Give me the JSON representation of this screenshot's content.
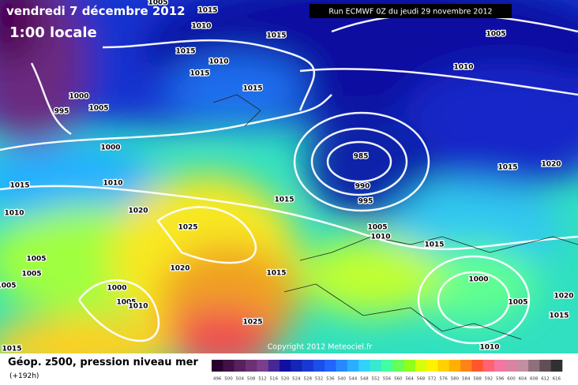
{
  "header": {
    "date": "vendredi 7 décembre 2012",
    "time": "1:00 locale",
    "run": "Run ECMWF 0Z du jeudi 29 novembre 2012"
  },
  "map": {
    "isobar_labels": [
      "1005",
      "1015",
      "1010",
      "1015",
      "1015",
      "1010",
      "1015",
      "1015",
      "1005",
      "1010",
      "1000",
      "995",
      "1005",
      "1000",
      "985",
      "990",
      "995",
      "1015",
      "1020",
      "1015",
      "1010",
      "1015",
      "1020",
      "1010",
      "1025",
      "1005",
      "1010",
      "1015",
      "1005",
      "1005",
      "1020",
      "1015",
      "1000",
      "1000",
      "1005",
      "1005",
      "1010",
      "1020",
      "1005",
      "1015",
      "1025",
      "1010",
      "1015"
    ],
    "copyright": "Copyright 2012 Meteociel.fr"
  },
  "legend": {
    "title": "Géop. z500, pression niveau mer",
    "lead": "(+192h)",
    "scale": [
      496,
      500,
      504,
      508,
      512,
      516,
      520,
      524,
      528,
      532,
      536,
      540,
      544,
      548,
      552,
      556,
      560,
      564,
      568,
      572,
      576,
      580,
      584,
      588,
      592,
      596,
      600,
      604,
      608,
      612,
      616
    ]
  }
}
